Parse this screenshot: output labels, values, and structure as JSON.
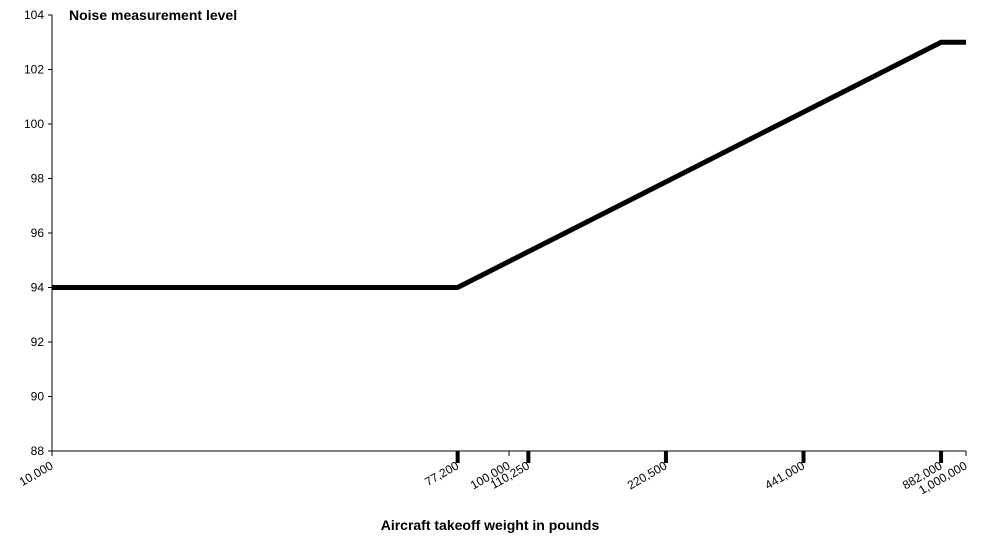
{
  "chart_data": {
    "type": "line",
    "title": "Noise measurement level",
    "xlabel": "Aircraft takeoff weight in pounds",
    "ylabel": "",
    "xscale": "log",
    "xlim": [
      10000,
      1000000
    ],
    "ylim": [
      88,
      104
    ],
    "yticks": [
      88,
      90,
      92,
      94,
      96,
      98,
      100,
      102,
      104
    ],
    "xticks": [
      {
        "value": 10000,
        "label": "10,000",
        "major": false
      },
      {
        "value": 77200,
        "label": "77,200",
        "major": true
      },
      {
        "value": 100000,
        "label": "100,000",
        "major": false
      },
      {
        "value": 110250,
        "label": "110,250",
        "major": true
      },
      {
        "value": 220500,
        "label": "220,500",
        "major": true
      },
      {
        "value": 441000,
        "label": "441,000",
        "major": true
      },
      {
        "value": 882000,
        "label": "882,000",
        "major": true
      },
      {
        "value": 1000000,
        "label": "1,000,000",
        "major": false
      }
    ],
    "grid": false,
    "series": [
      {
        "x": [
          10000,
          77200,
          882000,
          1000000
        ],
        "y": [
          94,
          94,
          103,
          103
        ]
      }
    ]
  }
}
